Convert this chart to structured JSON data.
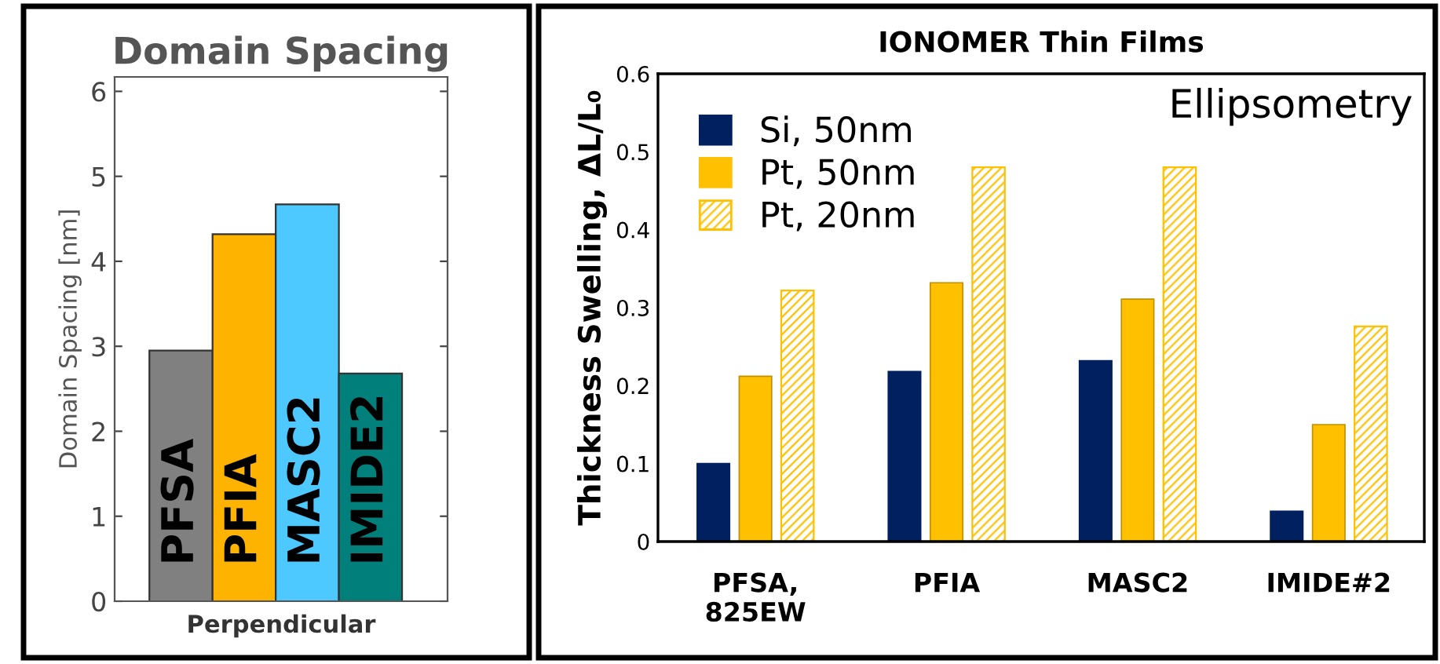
{
  "chart_data": [
    {
      "type": "bar",
      "title": "Domain Spacing",
      "xlabel": "Perpendicular",
      "ylabel": "Domain Spacing [nm]",
      "categories": [
        "PFSA",
        "PFIA",
        "MASC2",
        "IMIDE2"
      ],
      "values": [
        2.95,
        4.32,
        4.67,
        2.68
      ],
      "colors": [
        "#808080",
        "#fdb300",
        "#4dc9ff",
        "#007f7b"
      ],
      "ylim": [
        0,
        6.17
      ],
      "yticks": [
        0,
        1,
        2,
        3,
        4,
        5,
        6
      ],
      "tick_labels": "y",
      "grid": false
    },
    {
      "type": "bar",
      "title": "IONOMER Thin Films",
      "ylabel": "Thickness Swelling, ΔL/L₀",
      "categories": [
        "PFSA,\n825EW",
        "PFIA",
        "MASC2",
        "IMIDE#2"
      ],
      "series": [
        {
          "name": "Si, 50nm",
          "color": "#002060",
          "values": [
            0.1,
            0.218,
            0.232,
            0.039
          ]
        },
        {
          "name": "Pt, 50nm",
          "color": "#ffc000",
          "values": [
            0.212,
            0.332,
            0.311,
            0.15
          ]
        },
        {
          "name": "Pt, 20nm",
          "color": "#ffc000",
          "values": [
            0.322,
            0.48,
            0.48,
            0.276
          ]
        }
      ],
      "annotations": [
        "Ellipsometry"
      ],
      "ylim": [
        0,
        0.6
      ],
      "yticks": [
        0,
        0.1,
        0.2,
        0.3,
        0.4,
        0.5,
        0.6
      ],
      "grid": false,
      "legend": "top left"
    }
  ]
}
